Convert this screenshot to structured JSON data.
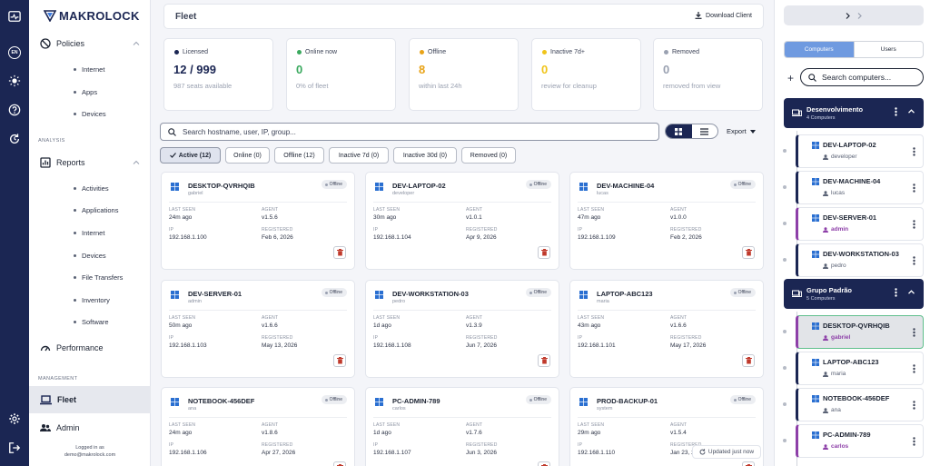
{
  "sidebar": {
    "logo_text": "MAKROLOCK",
    "policies": {
      "label": "Policies",
      "items": [
        "Internet",
        "Apps",
        "Devices"
      ]
    },
    "analysis_label": "ANALYSIS",
    "reports": {
      "label": "Reports",
      "items": [
        "Activities",
        "Applications",
        "Internet",
        "Devices",
        "File Transfers",
        "Inventory",
        "Software"
      ]
    },
    "performance_label": "Performance",
    "management_label": "MANAGEMENT",
    "fleet_label": "Fleet",
    "admin_label": "Admin",
    "logged_in_as": "Logged in as",
    "user_email": "demo@makrolock.com",
    "lang": "EN"
  },
  "header": {
    "title": "Fleet",
    "download_label": "Download Client"
  },
  "stats": [
    {
      "label": "Licensed",
      "value": "12 / 999",
      "sub": "987 seats available",
      "color": "#1b2653"
    },
    {
      "label": "Online now",
      "value": "0",
      "sub": "0% of fleet",
      "color": "#3aa95e"
    },
    {
      "label": "Offline",
      "value": "8",
      "sub": "within last 24h",
      "color": "#e8a317"
    },
    {
      "label": "Inactive 7d+",
      "value": "0",
      "sub": "review for cleanup",
      "color": "#f0c419"
    },
    {
      "label": "Removed",
      "value": "0",
      "sub": "removed from view",
      "color": "#9aa1b1"
    }
  ],
  "search": {
    "placeholder": "Search hostname, user, IP, group..."
  },
  "export_label": "Export",
  "filters": [
    "Active (12)",
    "Online (0)",
    "Offline (12)",
    "Inactive 7d (0)",
    "Inactive 30d (0)",
    "Removed (0)"
  ],
  "labels": {
    "last_seen": "LAST SEEN",
    "agent": "AGENT",
    "ip": "IP",
    "registered": "REGISTERED"
  },
  "devices": [
    {
      "name": "DESKTOP-QVRHQIB",
      "user": "gabriel",
      "status": "Offline",
      "last_seen": "24m ago",
      "agent": "v1.5.6",
      "ip": "192.168.1.100",
      "registered": "Feb 6, 2026"
    },
    {
      "name": "DEV-LAPTOP-02",
      "user": "developer",
      "status": "Offline",
      "last_seen": "30m ago",
      "agent": "v1.0.1",
      "ip": "192.168.1.104",
      "registered": "Apr 9, 2026"
    },
    {
      "name": "DEV-MACHINE-04",
      "user": "lucas",
      "status": "Offline",
      "last_seen": "47m ago",
      "agent": "v1.0.0",
      "ip": "192.168.1.109",
      "registered": "Feb 2, 2026"
    },
    {
      "name": "DEV-SERVER-01",
      "user": "admin",
      "status": "Offline",
      "last_seen": "50m ago",
      "agent": "v1.6.6",
      "ip": "192.168.1.103",
      "registered": "May 13, 2026"
    },
    {
      "name": "DEV-WORKSTATION-03",
      "user": "pedro",
      "status": "Offline",
      "last_seen": "1d ago",
      "agent": "v1.3.9",
      "ip": "192.168.1.108",
      "registered": "Jun 7, 2026"
    },
    {
      "name": "LAPTOP-ABC123",
      "user": "maria",
      "status": "Offline",
      "last_seen": "43m ago",
      "agent": "v1.6.6",
      "ip": "192.168.1.101",
      "registered": "May 17, 2026"
    },
    {
      "name": "NOTEBOOK-456DEF",
      "user": "ana",
      "status": "Offline",
      "last_seen": "24m ago",
      "agent": "v1.8.6",
      "ip": "192.168.1.106",
      "registered": "Apr 27, 2026"
    },
    {
      "name": "PC-ADMIN-789",
      "user": "carlos",
      "status": "Offline",
      "last_seen": "1d ago",
      "agent": "v1.7.6",
      "ip": "192.168.1.107",
      "registered": "Jun 3, 2026"
    },
    {
      "name": "PROD-BACKUP-01",
      "user": "system",
      "status": "Offline",
      "last_seen": "29m ago",
      "agent": "v1.5.4",
      "ip": "192.168.1.110",
      "registered": "Jan 23, 2026"
    }
  ],
  "updated_label": "Updated just now",
  "right": {
    "tabs": [
      "Computers",
      "Users"
    ],
    "search_placeholder": "Search computers...",
    "groups": [
      {
        "name": "Desenvolvimento",
        "count": "4 Computers",
        "items": [
          {
            "name": "DEV-LAPTOP-02",
            "user": "developer"
          },
          {
            "name": "DEV-MACHINE-04",
            "user": "lucas"
          },
          {
            "name": "DEV-SERVER-01",
            "user": "admin"
          },
          {
            "name": "DEV-WORKSTATION-03",
            "user": "pedro"
          }
        ]
      },
      {
        "name": "Grupo Padrão",
        "count": "5 Computers",
        "items": [
          {
            "name": "DESKTOP-QVRHQIB",
            "user": "gabriel"
          },
          {
            "name": "LAPTOP-ABC123",
            "user": "maria"
          },
          {
            "name": "NOTEBOOK-456DEF",
            "user": "ana"
          },
          {
            "name": "PC-ADMIN-789",
            "user": "carlos"
          }
        ]
      }
    ]
  }
}
